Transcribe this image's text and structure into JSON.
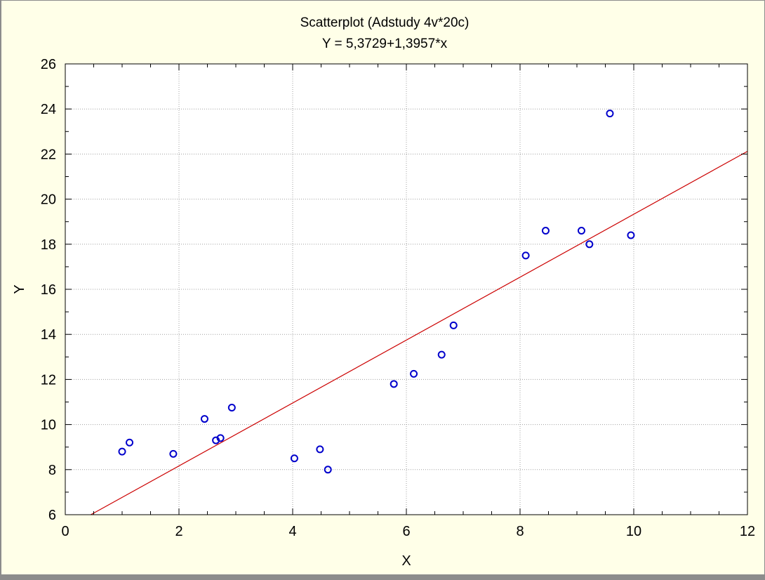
{
  "chart_data": {
    "type": "scatter",
    "title": "Scatterplot (Adstudy 4v*20c)",
    "subtitle": "Y = 5,3729+1,3957*x",
    "xlabel": "X",
    "ylabel": "Y",
    "xlim": [
      0,
      12
    ],
    "ylim": [
      6,
      26
    ],
    "xticks": [
      0,
      2,
      4,
      6,
      8,
      10,
      12
    ],
    "yticks": [
      6,
      8,
      10,
      12,
      14,
      16,
      18,
      20,
      22,
      24,
      26
    ],
    "grid": true,
    "points": [
      {
        "x": 1.0,
        "y": 8.8
      },
      {
        "x": 1.13,
        "y": 9.2
      },
      {
        "x": 1.9,
        "y": 8.7
      },
      {
        "x": 2.45,
        "y": 10.25
      },
      {
        "x": 2.65,
        "y": 9.3
      },
      {
        "x": 2.73,
        "y": 9.4
      },
      {
        "x": 2.93,
        "y": 10.75
      },
      {
        "x": 4.03,
        "y": 8.5
      },
      {
        "x": 4.48,
        "y": 8.9
      },
      {
        "x": 4.62,
        "y": 8.0
      },
      {
        "x": 5.78,
        "y": 11.8
      },
      {
        "x": 6.13,
        "y": 12.25
      },
      {
        "x": 6.62,
        "y": 13.1
      },
      {
        "x": 6.83,
        "y": 14.4
      },
      {
        "x": 8.1,
        "y": 17.5
      },
      {
        "x": 8.45,
        "y": 18.6
      },
      {
        "x": 9.08,
        "y": 18.6
      },
      {
        "x": 9.22,
        "y": 18.0
      },
      {
        "x": 9.58,
        "y": 23.8
      },
      {
        "x": 9.95,
        "y": 18.4
      }
    ],
    "fit_line": {
      "intercept": 5.3729,
      "slope": 1.3957
    },
    "colors": {
      "background": "#ffffe8",
      "plot_background": "#ffffff",
      "point": "#0000cc",
      "fit_line": "#cc0000",
      "grid": "#a0a0a0",
      "frame": "#8c8c8c"
    }
  }
}
